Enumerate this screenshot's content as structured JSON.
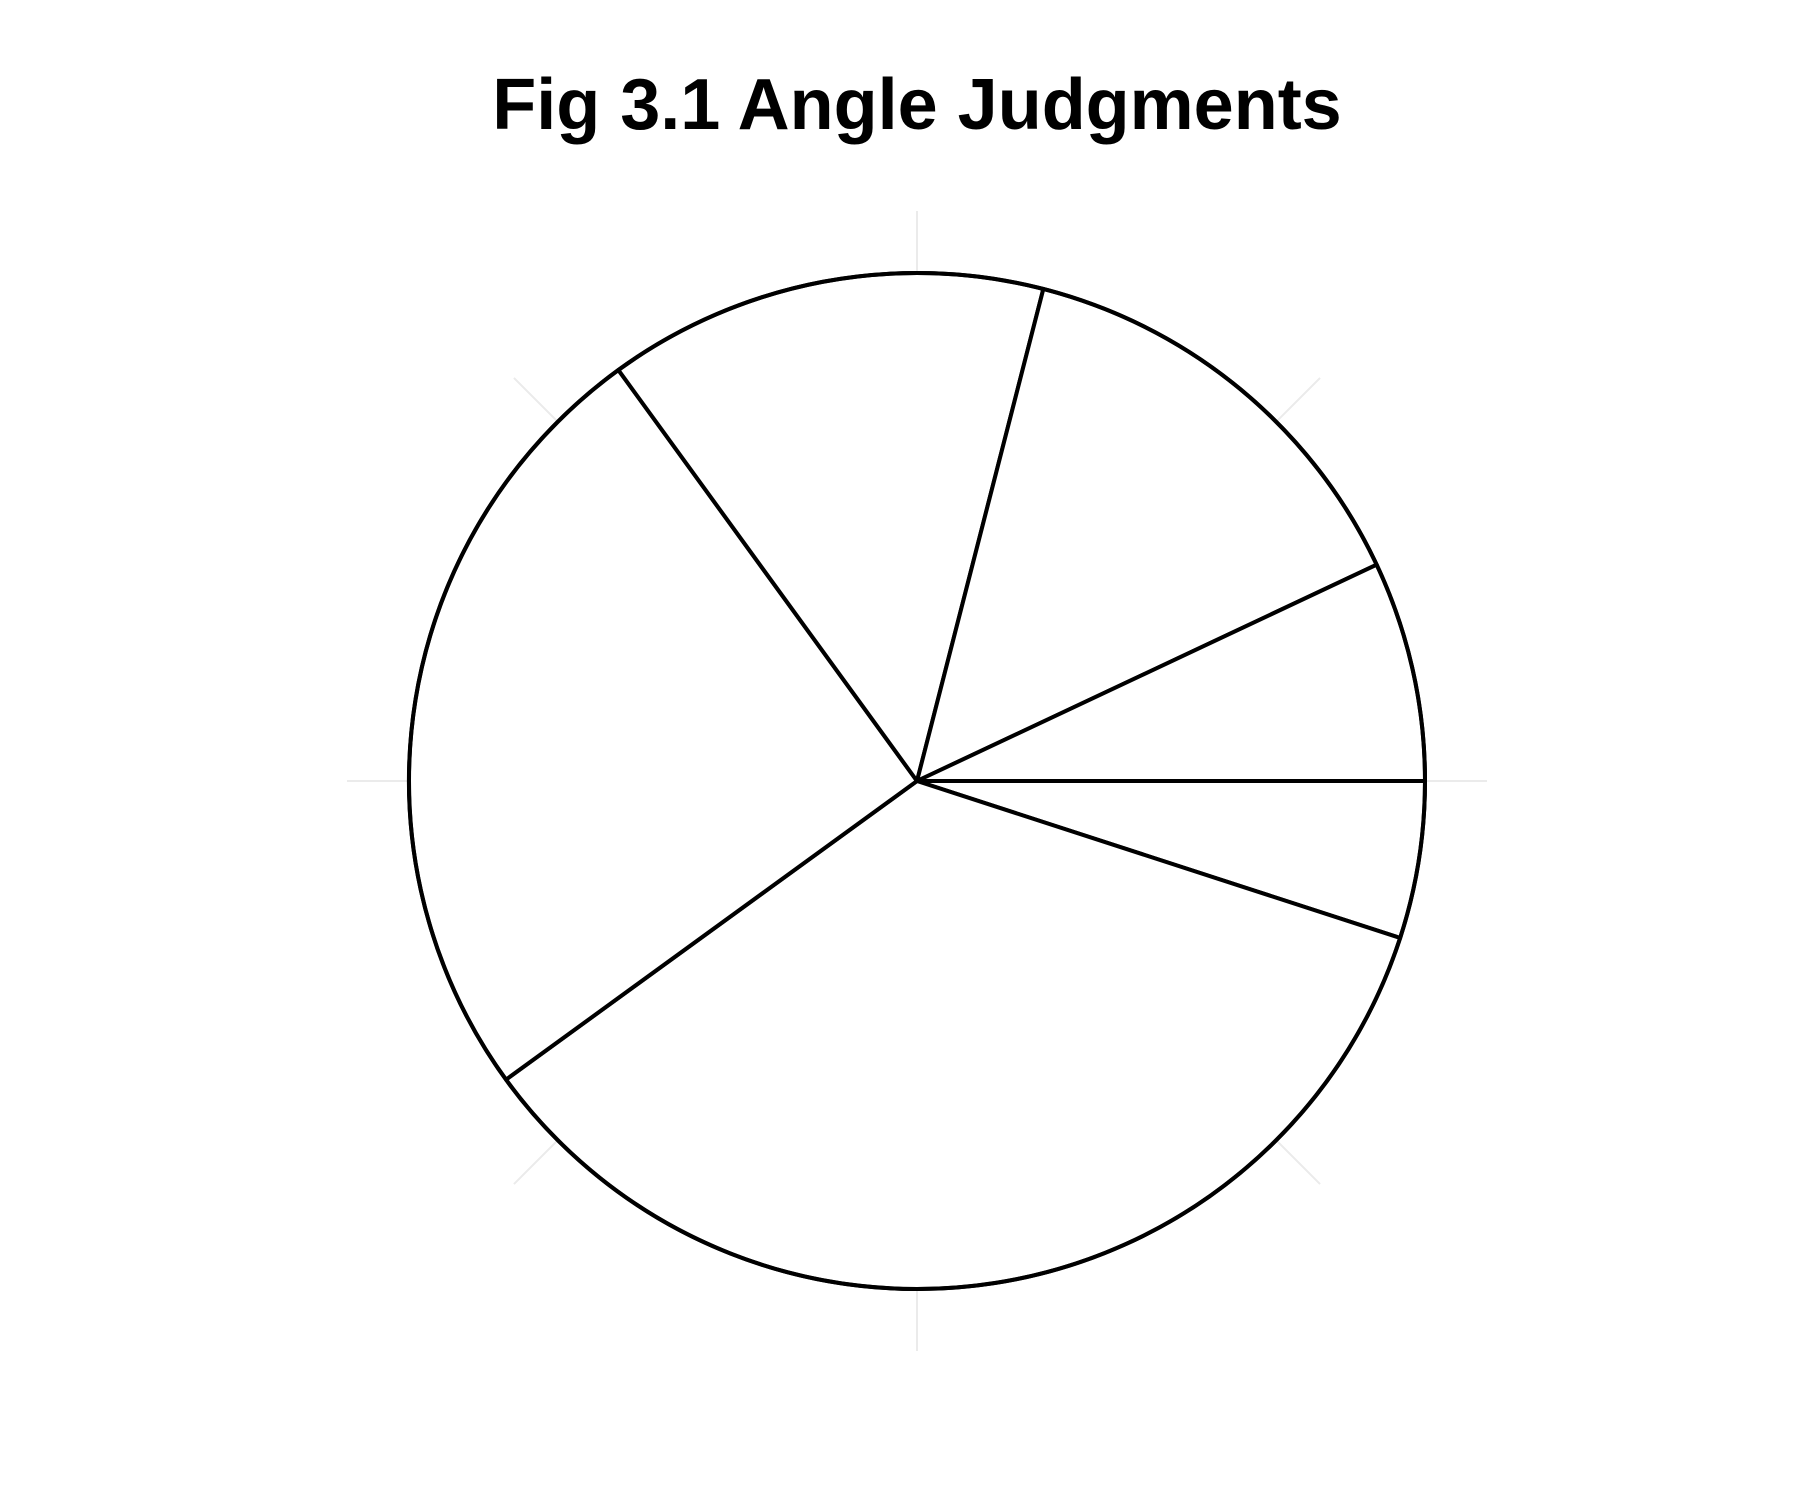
{
  "chart_data": {
    "type": "pie",
    "title": "Fig 3.1 Angle Judgments",
    "slices": [
      {
        "value": 5
      },
      {
        "value": 35
      },
      {
        "value": 25
      },
      {
        "value": 14
      },
      {
        "value": 14
      },
      {
        "value": 7
      }
    ],
    "legend": "none",
    "grid": true,
    "colors": {
      "fill": "#ffffff",
      "stroke": "#000000",
      "grid": "#ebebeb"
    }
  }
}
